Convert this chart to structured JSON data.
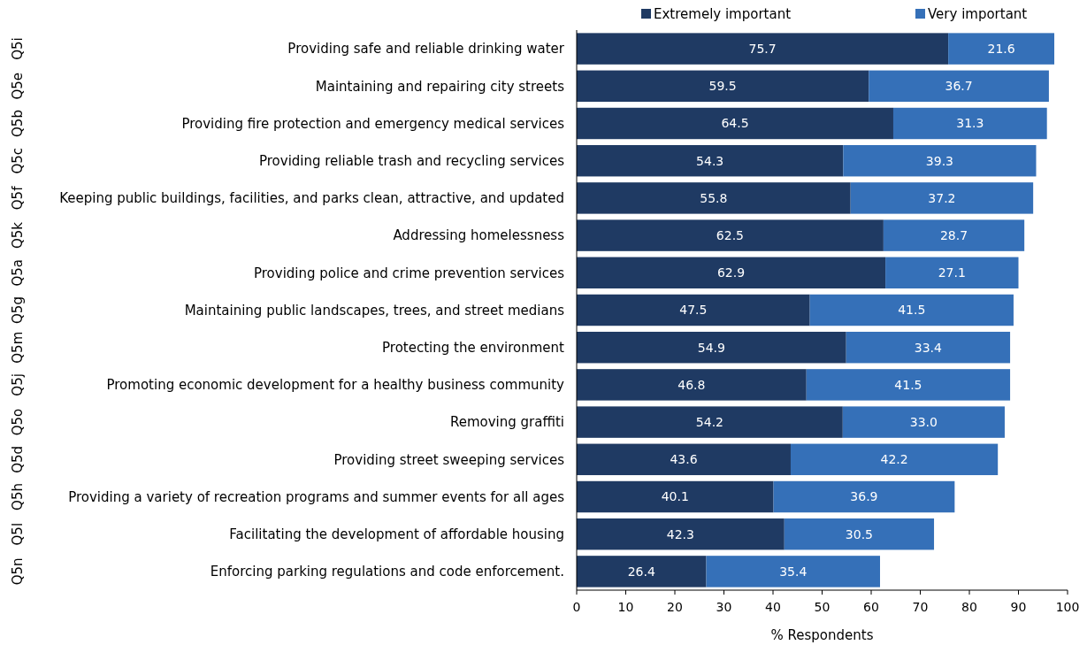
{
  "chart_data": {
    "type": "bar",
    "orientation": "horizontal",
    "stacked": true,
    "xlabel": "% Respondents",
    "categories": [
      "Providing safe and reliable drinking water",
      "Maintaining and repairing city streets",
      "Providing fire protection and emergency medical services",
      "Providing reliable trash and recycling services",
      "Keeping public buildings, facilities, and parks clean, attractive, and updated",
      "Addressing homelessness",
      "Providing police and crime prevention services",
      "Maintaining public landscapes, trees, and street medians",
      "Protecting the environment",
      "Promoting economic development for a healthy business community",
      "Removing graffiti",
      "Providing street sweeping services",
      "Providing a variety of recreation programs and summer events for all ages",
      "Facilitating the development of affordable housing",
      "Enforcing parking regulations and code enforcement."
    ],
    "y2_categories": [
      "Q5i",
      "Q5e",
      "Q5b",
      "Q5c",
      "Q5f",
      "Q5k",
      "Q5a",
      "Q5g",
      "Q5m",
      "Q5j",
      "Q5o",
      "Q5d",
      "Q5h",
      "Q5l",
      "Q5n"
    ],
    "series": [
      {
        "name": "Extremely important",
        "color": "#1f3a63",
        "values": [
          75.7,
          59.5,
          64.5,
          54.3,
          55.8,
          62.5,
          62.9,
          47.5,
          54.9,
          46.8,
          54.2,
          43.6,
          40.1,
          42.3,
          26.4
        ],
        "value_labels": [
          "75.7",
          "59.5",
          "64.5",
          "54.3",
          "55.8",
          "62.5",
          "62.9",
          "47.5",
          "54.9",
          "46.8",
          "54.2",
          "43.6",
          "40.1",
          "42.3",
          "26.4"
        ]
      },
      {
        "name": "Very important",
        "color": "#3570b8",
        "values": [
          21.6,
          36.7,
          31.3,
          39.3,
          37.2,
          28.7,
          27.1,
          41.5,
          33.4,
          41.5,
          33.0,
          42.2,
          36.9,
          30.5,
          35.4
        ],
        "value_labels": [
          "21.6",
          "36.7",
          "31.3",
          "39.3",
          "37.2",
          "28.7",
          "27.1",
          "41.5",
          "33.4",
          "41.5",
          "33.0",
          "42.2",
          "36.9",
          "30.5",
          "35.4"
        ]
      }
    ],
    "xlim": [
      0,
      100
    ],
    "xticks": [
      0,
      10,
      20,
      30,
      40,
      50,
      60,
      70,
      80,
      90,
      100
    ],
    "legend": "top",
    "grid": false
  }
}
